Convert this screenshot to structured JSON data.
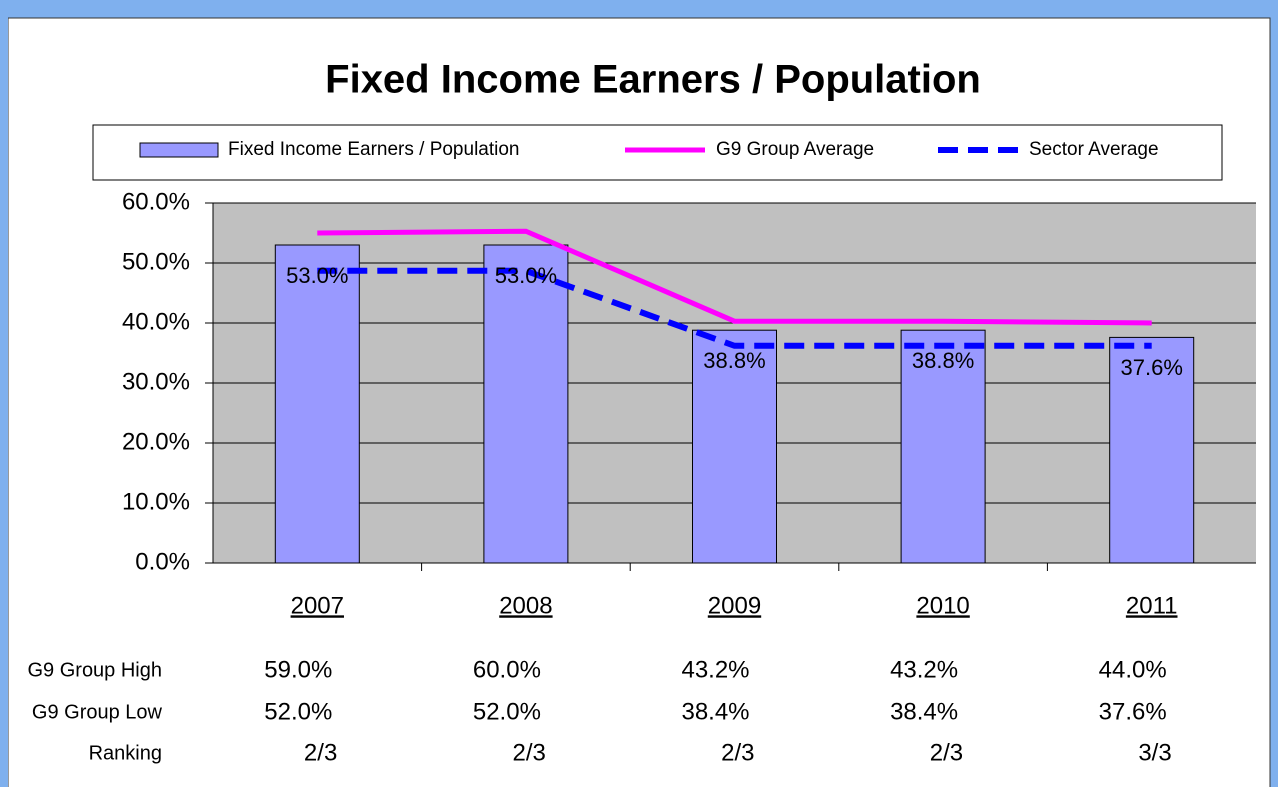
{
  "chart_data": {
    "type": "bar",
    "title": "Fixed Income Earners / Population",
    "categories": [
      "2007",
      "2008",
      "2009",
      "2010",
      "2011"
    ],
    "series": [
      {
        "name": "Fixed Income Earners / Population",
        "kind": "bar",
        "color": "#9999ff",
        "values": [
          53.0,
          53.0,
          38.8,
          38.8,
          37.6
        ],
        "value_labels": [
          "53.0%",
          "53.0%",
          "38.8%",
          "38.8%",
          "37.6%"
        ]
      },
      {
        "name": "G9 Group Average",
        "kind": "line",
        "color": "#ff00ff",
        "dashed": false,
        "values": [
          55.0,
          55.3,
          40.3,
          40.3,
          40.0
        ]
      },
      {
        "name": "Sector Average",
        "kind": "line",
        "color": "#0000ff",
        "dashed": true,
        "values": [
          48.7,
          48.7,
          36.2,
          36.2,
          36.2
        ]
      }
    ],
    "ylim": [
      0,
      60
    ],
    "yticks": [
      {
        "value": 0,
        "label": "0.0%"
      },
      {
        "value": 10,
        "label": "10.0%"
      },
      {
        "value": 20,
        "label": "20.0%"
      },
      {
        "value": 30,
        "label": "30.0%"
      },
      {
        "value": 40,
        "label": "40.0%"
      },
      {
        "value": 50,
        "label": "50.0%"
      },
      {
        "value": 60,
        "label": "60.0%"
      }
    ],
    "grid": true,
    "legend": "top"
  },
  "table": {
    "rows": [
      {
        "label": "G9 Group High",
        "values": [
          "59.0%",
          "60.0%",
          "43.2%",
          "43.2%",
          "44.0%"
        ]
      },
      {
        "label": "G9 Group Low",
        "values": [
          "52.0%",
          "52.0%",
          "38.4%",
          "38.4%",
          "37.6%"
        ]
      },
      {
        "label": "Ranking",
        "values": [
          "2/3",
          "2/3",
          "2/3",
          "2/3",
          "3/3"
        ]
      }
    ]
  }
}
